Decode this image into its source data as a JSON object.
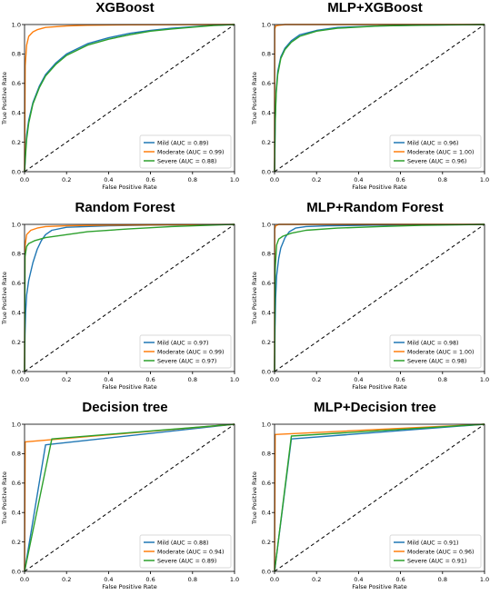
{
  "chart_data": [
    {
      "type": "line",
      "title": "XGBoost",
      "xlabel": "False Positive Rate",
      "ylabel": "True Positive Rate",
      "xlim": [
        0,
        1
      ],
      "ylim": [
        0,
        1
      ],
      "xticks": [
        "0.0",
        "0.2",
        "0.4",
        "0.6",
        "0.8",
        "1.0"
      ],
      "yticks": [
        "0.0",
        "0.2",
        "0.4",
        "0.6",
        "0.8",
        "1.0"
      ],
      "legend_position": "lower-right",
      "series": [
        {
          "name": "Mild (AUC = 0.89)",
          "color": "#1f77b4",
          "x": [
            0,
            0.005,
            0.01,
            0.02,
            0.04,
            0.07,
            0.1,
            0.15,
            0.2,
            0.3,
            0.4,
            0.5,
            0.6,
            0.7,
            0.8,
            0.9,
            1.0
          ],
          "y": [
            0,
            0.15,
            0.25,
            0.35,
            0.47,
            0.58,
            0.66,
            0.74,
            0.8,
            0.87,
            0.91,
            0.94,
            0.96,
            0.975,
            0.985,
            0.995,
            1.0
          ]
        },
        {
          "name": "Moderate (AUC = 0.99)",
          "color": "#ff7f0e",
          "x": [
            0,
            0.003,
            0.01,
            0.02,
            0.04,
            0.06,
            0.1,
            0.2,
            0.3,
            0.5,
            1.0
          ],
          "y": [
            0,
            0.72,
            0.86,
            0.92,
            0.95,
            0.965,
            0.98,
            0.99,
            0.995,
            0.998,
            1.0
          ]
        },
        {
          "name": "Severe (AUC = 0.88)",
          "color": "#2ca02c",
          "x": [
            0,
            0.005,
            0.01,
            0.02,
            0.04,
            0.07,
            0.1,
            0.15,
            0.2,
            0.3,
            0.4,
            0.5,
            0.6,
            0.7,
            0.8,
            0.9,
            1.0
          ],
          "y": [
            0,
            0.12,
            0.22,
            0.33,
            0.46,
            0.57,
            0.65,
            0.73,
            0.79,
            0.86,
            0.9,
            0.93,
            0.955,
            0.97,
            0.982,
            0.993,
            1.0
          ]
        }
      ]
    },
    {
      "type": "line",
      "title": "MLP+XGBoost",
      "xlabel": "False Positive Rate",
      "ylabel": "True Positive Rate",
      "xlim": [
        0,
        1
      ],
      "ylim": [
        0,
        1
      ],
      "xticks": [
        "0.0",
        "0.2",
        "0.4",
        "0.6",
        "0.8",
        "1.0"
      ],
      "yticks": [
        "0.0",
        "0.2",
        "0.4",
        "0.6",
        "0.8",
        "1.0"
      ],
      "legend_position": "lower-right",
      "series": [
        {
          "name": "Mild (AUC = 0.96)",
          "color": "#1f77b4",
          "x": [
            0,
            0.003,
            0.008,
            0.015,
            0.03,
            0.05,
            0.08,
            0.12,
            0.2,
            0.3,
            0.5,
            0.7,
            1.0
          ],
          "y": [
            0,
            0.35,
            0.55,
            0.68,
            0.78,
            0.84,
            0.89,
            0.93,
            0.96,
            0.98,
            0.99,
            0.996,
            1.0
          ]
        },
        {
          "name": "Moderate (AUC = 1.00)",
          "color": "#ff7f0e",
          "x": [
            0,
            0.001,
            0.005,
            0.02,
            0.05,
            1.0
          ],
          "y": [
            0,
            0.97,
            0.99,
            0.995,
            1.0,
            1.0
          ]
        },
        {
          "name": "Severe (AUC = 0.96)",
          "color": "#2ca02c",
          "x": [
            0,
            0.003,
            0.008,
            0.015,
            0.03,
            0.05,
            0.08,
            0.12,
            0.2,
            0.3,
            0.5,
            0.7,
            1.0
          ],
          "y": [
            0,
            0.33,
            0.53,
            0.66,
            0.77,
            0.83,
            0.88,
            0.92,
            0.955,
            0.975,
            0.99,
            0.995,
            1.0
          ]
        }
      ]
    },
    {
      "type": "line",
      "title": "Random Forest",
      "xlabel": "False Positive Rate",
      "ylabel": "True Positive Rate",
      "xlim": [
        0,
        1
      ],
      "ylim": [
        0,
        1
      ],
      "xticks": [
        "0.0",
        "0.2",
        "0.4",
        "0.6",
        "0.8",
        "1.0"
      ],
      "yticks": [
        "0.0",
        "0.2",
        "0.4",
        "0.6",
        "0.8",
        "1.0"
      ],
      "legend_position": "lower-right",
      "series": [
        {
          "name": "Mild (AUC = 0.97)",
          "color": "#1f77b4",
          "x": [
            0,
            0.002,
            0.005,
            0.01,
            0.02,
            0.04,
            0.06,
            0.08,
            0.1,
            0.13,
            0.2,
            0.4,
            0.6,
            1.0
          ],
          "y": [
            0,
            0.25,
            0.4,
            0.52,
            0.62,
            0.74,
            0.83,
            0.89,
            0.93,
            0.96,
            0.98,
            0.99,
            0.995,
            1.0
          ]
        },
        {
          "name": "Moderate (AUC = 0.99)",
          "color": "#ff7f0e",
          "x": [
            0,
            0.002,
            0.01,
            0.03,
            0.06,
            0.1,
            0.2,
            0.4,
            1.0
          ],
          "y": [
            0,
            0.85,
            0.93,
            0.96,
            0.975,
            0.985,
            0.99,
            0.995,
            1.0
          ]
        },
        {
          "name": "Severe (AUC = 0.97)",
          "color": "#2ca02c",
          "x": [
            0,
            0.002,
            0.01,
            0.02,
            0.05,
            0.1,
            0.2,
            0.3,
            0.5,
            0.7,
            1.0
          ],
          "y": [
            0,
            0.78,
            0.85,
            0.87,
            0.89,
            0.91,
            0.93,
            0.95,
            0.97,
            0.985,
            1.0
          ]
        }
      ]
    },
    {
      "type": "line",
      "title": "MLP+Random Forest",
      "xlabel": "False Positive Rate",
      "ylabel": "True Positive Rate",
      "xlim": [
        0,
        1
      ],
      "ylim": [
        0,
        1
      ],
      "xticks": [
        "0.0",
        "0.2",
        "0.4",
        "0.6",
        "0.8",
        "1.0"
      ],
      "yticks": [
        "0.0",
        "0.2",
        "0.4",
        "0.6",
        "0.8",
        "1.0"
      ],
      "legend_position": "lower-right",
      "series": [
        {
          "name": "Mild (AUC = 0.98)",
          "color": "#1f77b4",
          "x": [
            0,
            0.002,
            0.005,
            0.01,
            0.02,
            0.03,
            0.05,
            0.07,
            0.1,
            0.15,
            0.25,
            0.5,
            1.0
          ],
          "y": [
            0,
            0.3,
            0.5,
            0.65,
            0.77,
            0.84,
            0.91,
            0.95,
            0.975,
            0.985,
            0.99,
            0.995,
            1.0
          ]
        },
        {
          "name": "Moderate (AUC = 1.00)",
          "color": "#ff7f0e",
          "x": [
            0,
            0.001,
            0.005,
            0.02,
            1.0
          ],
          "y": [
            0,
            0.97,
            0.99,
            1.0,
            1.0
          ]
        },
        {
          "name": "Severe (AUC = 0.98)",
          "color": "#2ca02c",
          "x": [
            0,
            0.003,
            0.01,
            0.02,
            0.04,
            0.08,
            0.15,
            0.3,
            0.5,
            0.7,
            1.0
          ],
          "y": [
            0,
            0.7,
            0.86,
            0.9,
            0.92,
            0.94,
            0.96,
            0.975,
            0.985,
            0.993,
            1.0
          ]
        }
      ]
    },
    {
      "type": "line",
      "title": "Decision tree",
      "xlabel": "False Positive Rate",
      "ylabel": "True Positive Rate",
      "xlim": [
        0,
        1
      ],
      "ylim": [
        0,
        1
      ],
      "xticks": [
        "0.0",
        "0.2",
        "0.4",
        "0.6",
        "0.8",
        "1.0"
      ],
      "yticks": [
        "0.0",
        "0.2",
        "0.4",
        "0.6",
        "0.8",
        "1.0"
      ],
      "legend_position": "lower-right",
      "series": [
        {
          "name": "Mild (AUC = 0.88)",
          "color": "#1f77b4",
          "x": [
            0,
            0.1,
            1.0
          ],
          "y": [
            0,
            0.86,
            1.0
          ]
        },
        {
          "name": "Moderate (AUC = 0.94)",
          "color": "#ff7f0e",
          "x": [
            0,
            0.003,
            1.0
          ],
          "y": [
            0,
            0.88,
            1.0
          ]
        },
        {
          "name": "Severe (AUC = 0.89)",
          "color": "#2ca02c",
          "x": [
            0,
            0.13,
            1.0
          ],
          "y": [
            0,
            0.9,
            1.0
          ]
        }
      ]
    },
    {
      "type": "line",
      "title": "MLP+Decision tree",
      "xlabel": "False Positive Rate",
      "ylabel": "True Positive Rate",
      "xlim": [
        0,
        1
      ],
      "ylim": [
        0,
        1
      ],
      "xticks": [
        "0.0",
        "0.2",
        "0.4",
        "0.6",
        "0.8",
        "1.0"
      ],
      "yticks": [
        "0.0",
        "0.2",
        "0.4",
        "0.6",
        "0.8",
        "1.0"
      ],
      "legend_position": "lower-right",
      "series": [
        {
          "name": "Mild (AUC = 0.91)",
          "color": "#1f77b4",
          "x": [
            0,
            0.08,
            1.0
          ],
          "y": [
            0,
            0.9,
            1.0
          ]
        },
        {
          "name": "Moderate (AUC = 0.96)",
          "color": "#ff7f0e",
          "x": [
            0,
            0.003,
            1.0
          ],
          "y": [
            0,
            0.93,
            1.0
          ]
        },
        {
          "name": "Severe (AUC = 0.91)",
          "color": "#2ca02c",
          "x": [
            0,
            0.08,
            1.0
          ],
          "y": [
            0,
            0.92,
            1.0
          ]
        }
      ]
    }
  ]
}
